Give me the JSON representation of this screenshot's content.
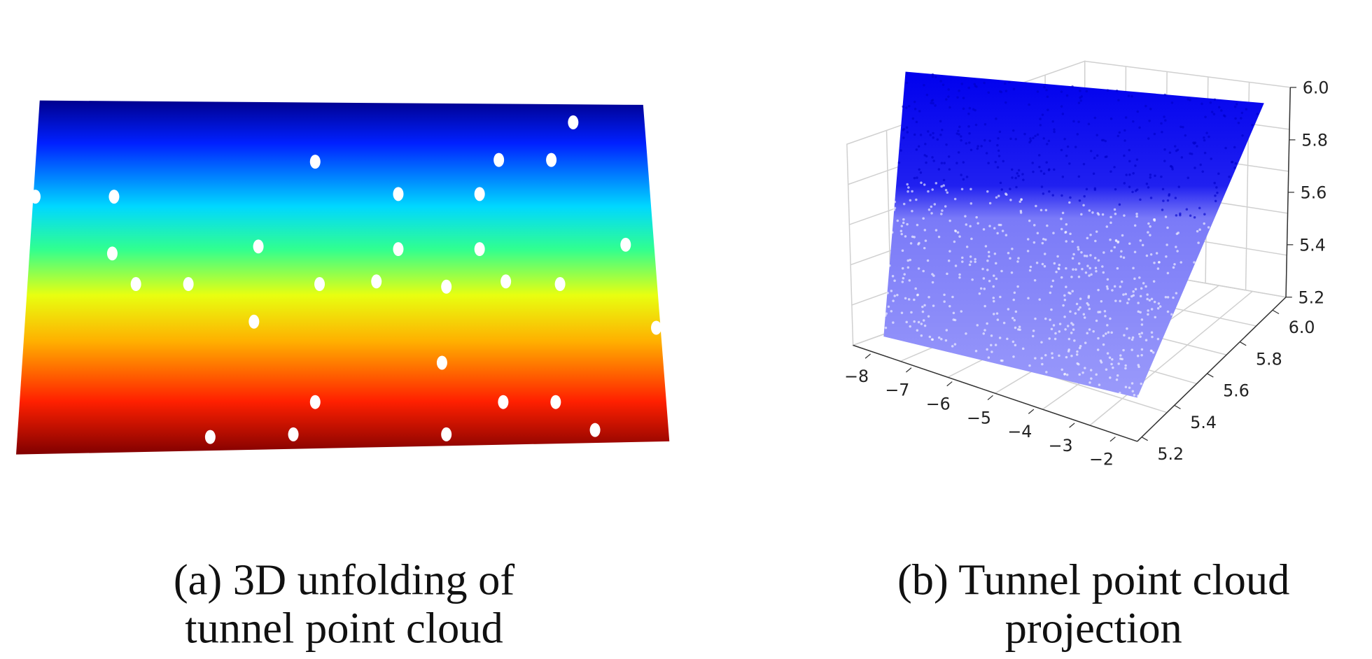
{
  "panels": [
    {
      "caption": [
        "(a) 3D unfolding of",
        "tunnel point cloud"
      ]
    },
    {
      "caption": [
        "(b) Tunnel point cloud",
        "projection"
      ],
      "x_ticks": [
        "−8",
        "−7",
        "−6",
        "−5",
        "−4",
        "−3",
        "−2"
      ],
      "y_ticks": [
        "5.2",
        "5.4",
        "5.6",
        "5.8",
        "6.0"
      ],
      "z_ticks": [
        "6.0",
        "5.8",
        "5.6",
        "5.4",
        "5.2"
      ]
    }
  ]
}
